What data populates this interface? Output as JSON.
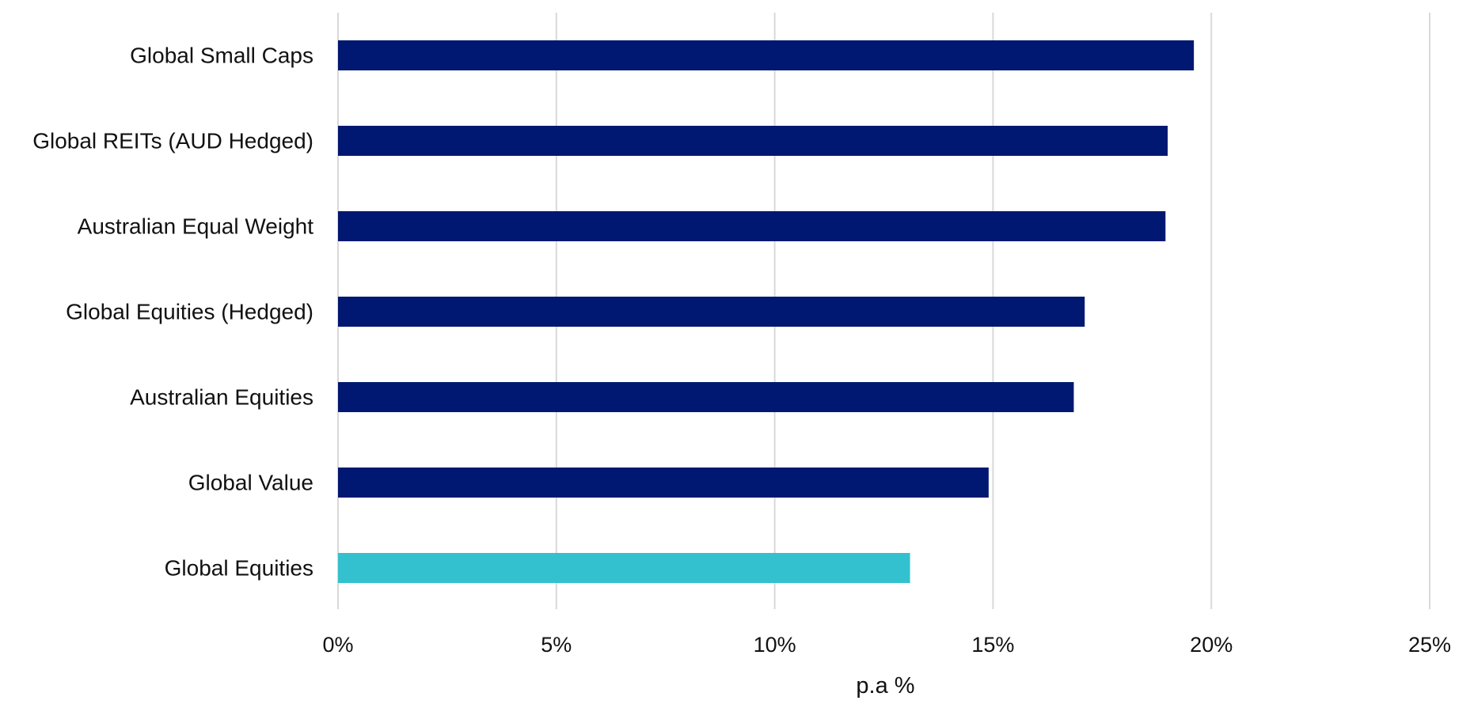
{
  "chart_data": {
    "type": "bar",
    "orientation": "horizontal",
    "categories": [
      "Global Small Caps",
      "Global REITs (AUD Hedged)",
      "Australian Equal Weight",
      "Global Equities (Hedged)",
      "Australian Equities",
      "Global Value",
      "Global Equities"
    ],
    "values": [
      19.6,
      19.0,
      18.95,
      17.1,
      16.85,
      14.9,
      13.1
    ],
    "bar_colors": [
      "#001871",
      "#001871",
      "#001871",
      "#001871",
      "#001871",
      "#001871",
      "#33c1cf"
    ],
    "title": "",
    "xlabel": "p.a %",
    "ylabel": "",
    "xlim": [
      0,
      25
    ],
    "xticks": [
      0,
      5,
      10,
      15,
      20,
      25
    ],
    "xtick_labels": [
      "0%",
      "5%",
      "10%",
      "15%",
      "20%",
      "25%"
    ],
    "grid": "vertical",
    "legend": "none"
  }
}
